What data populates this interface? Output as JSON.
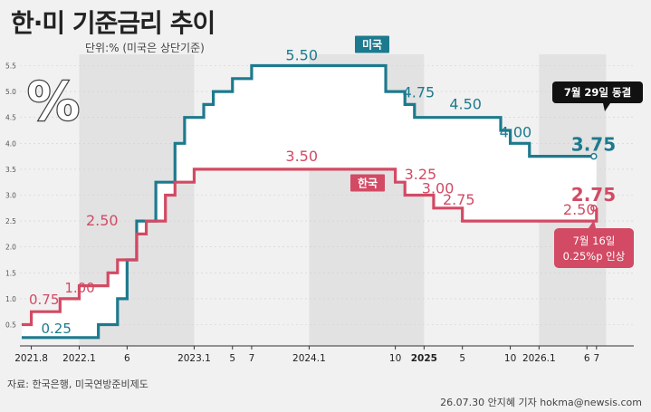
{
  "title": "한·미 기준금리 추이",
  "unit_note": "단위:% (미국은 상단기준)",
  "source": "자료: 한국은행, 미국연방준비제도",
  "credit": "26.07.30 안지혜 기자 hokma@newsis.com",
  "icon": "percent-icon",
  "colors": {
    "us": "#1d7a8e",
    "kr": "#d24a64",
    "bg": "#f1f1f1",
    "band": "#dcdcdc"
  },
  "chart_data": {
    "type": "line",
    "step": true,
    "xlabel": "",
    "ylabel": "",
    "ylim": [
      0.25,
      5.5
    ],
    "y_ticks": [
      "0.5",
      "1.0",
      "1.5",
      "2.0",
      "2.5",
      "3.0",
      "3.5",
      "4.0",
      "4.5",
      "5.0",
      "5.5"
    ],
    "x_ticks": [
      "2021.8",
      "2022.1",
      "6",
      "2023.1",
      "5",
      "7",
      "2024.1",
      "10",
      "2025",
      "5",
      "10",
      "2026.1",
      "6",
      "7"
    ],
    "series": [
      {
        "name": "미국",
        "steps": [
          [
            "2021-07",
            0.25
          ],
          [
            "2022-03",
            0.5
          ],
          [
            "2022-05",
            1.0
          ],
          [
            "2022-06",
            1.75
          ],
          [
            "2022-07",
            2.5
          ],
          [
            "2022-09",
            3.25
          ],
          [
            "2022-11",
            4.0
          ],
          [
            "2022-12",
            4.5
          ],
          [
            "2023-02",
            4.75
          ],
          [
            "2023-03",
            5.0
          ],
          [
            "2023-05",
            5.25
          ],
          [
            "2023-07",
            5.5
          ],
          [
            "2024-09",
            5.0
          ],
          [
            "2024-11",
            4.75
          ],
          [
            "2024-12",
            4.5
          ],
          [
            "2025-09",
            4.25
          ],
          [
            "2025-10",
            4.0
          ],
          [
            "2025-12",
            3.75
          ],
          [
            "2026-07",
            3.75
          ]
        ]
      },
      {
        "name": "한국",
        "steps": [
          [
            "2021-07",
            0.5
          ],
          [
            "2021-08",
            0.75
          ],
          [
            "2021-11",
            1.0
          ],
          [
            "2022-01",
            1.25
          ],
          [
            "2022-04",
            1.5
          ],
          [
            "2022-05",
            1.75
          ],
          [
            "2022-07",
            2.25
          ],
          [
            "2022-08",
            2.5
          ],
          [
            "2022-10",
            3.0
          ],
          [
            "2022-11",
            3.25
          ],
          [
            "2023-01",
            3.5
          ],
          [
            "2024-10",
            3.25
          ],
          [
            "2024-11",
            3.0
          ],
          [
            "2025-02",
            2.75
          ],
          [
            "2025-05",
            2.5
          ],
          [
            "2026-07",
            2.75
          ]
        ]
      }
    ],
    "data_labels": [
      {
        "series": "미국",
        "text": "0.25"
      },
      {
        "series": "미국",
        "text": "5.50"
      },
      {
        "series": "미국",
        "text": "4.75"
      },
      {
        "series": "미국",
        "text": "4.50"
      },
      {
        "series": "미국",
        "text": "4.00"
      },
      {
        "series": "미국",
        "text": "3.75"
      },
      {
        "series": "한국",
        "text": "0.75"
      },
      {
        "series": "한국",
        "text": "1.00"
      },
      {
        "series": "한국",
        "text": "2.50"
      },
      {
        "series": "한국",
        "text": "3.50"
      },
      {
        "series": "한국",
        "text": "3.25"
      },
      {
        "series": "한국",
        "text": "3.00"
      },
      {
        "series": "한국",
        "text": "2.75"
      },
      {
        "series": "한국",
        "text": "2.50"
      },
      {
        "series": "한국",
        "text": "2.75"
      }
    ],
    "callouts": {
      "us": "7월 29일 동결",
      "kr_line1": "7월 16일",
      "kr_line2": "0.25%p 인상"
    }
  }
}
